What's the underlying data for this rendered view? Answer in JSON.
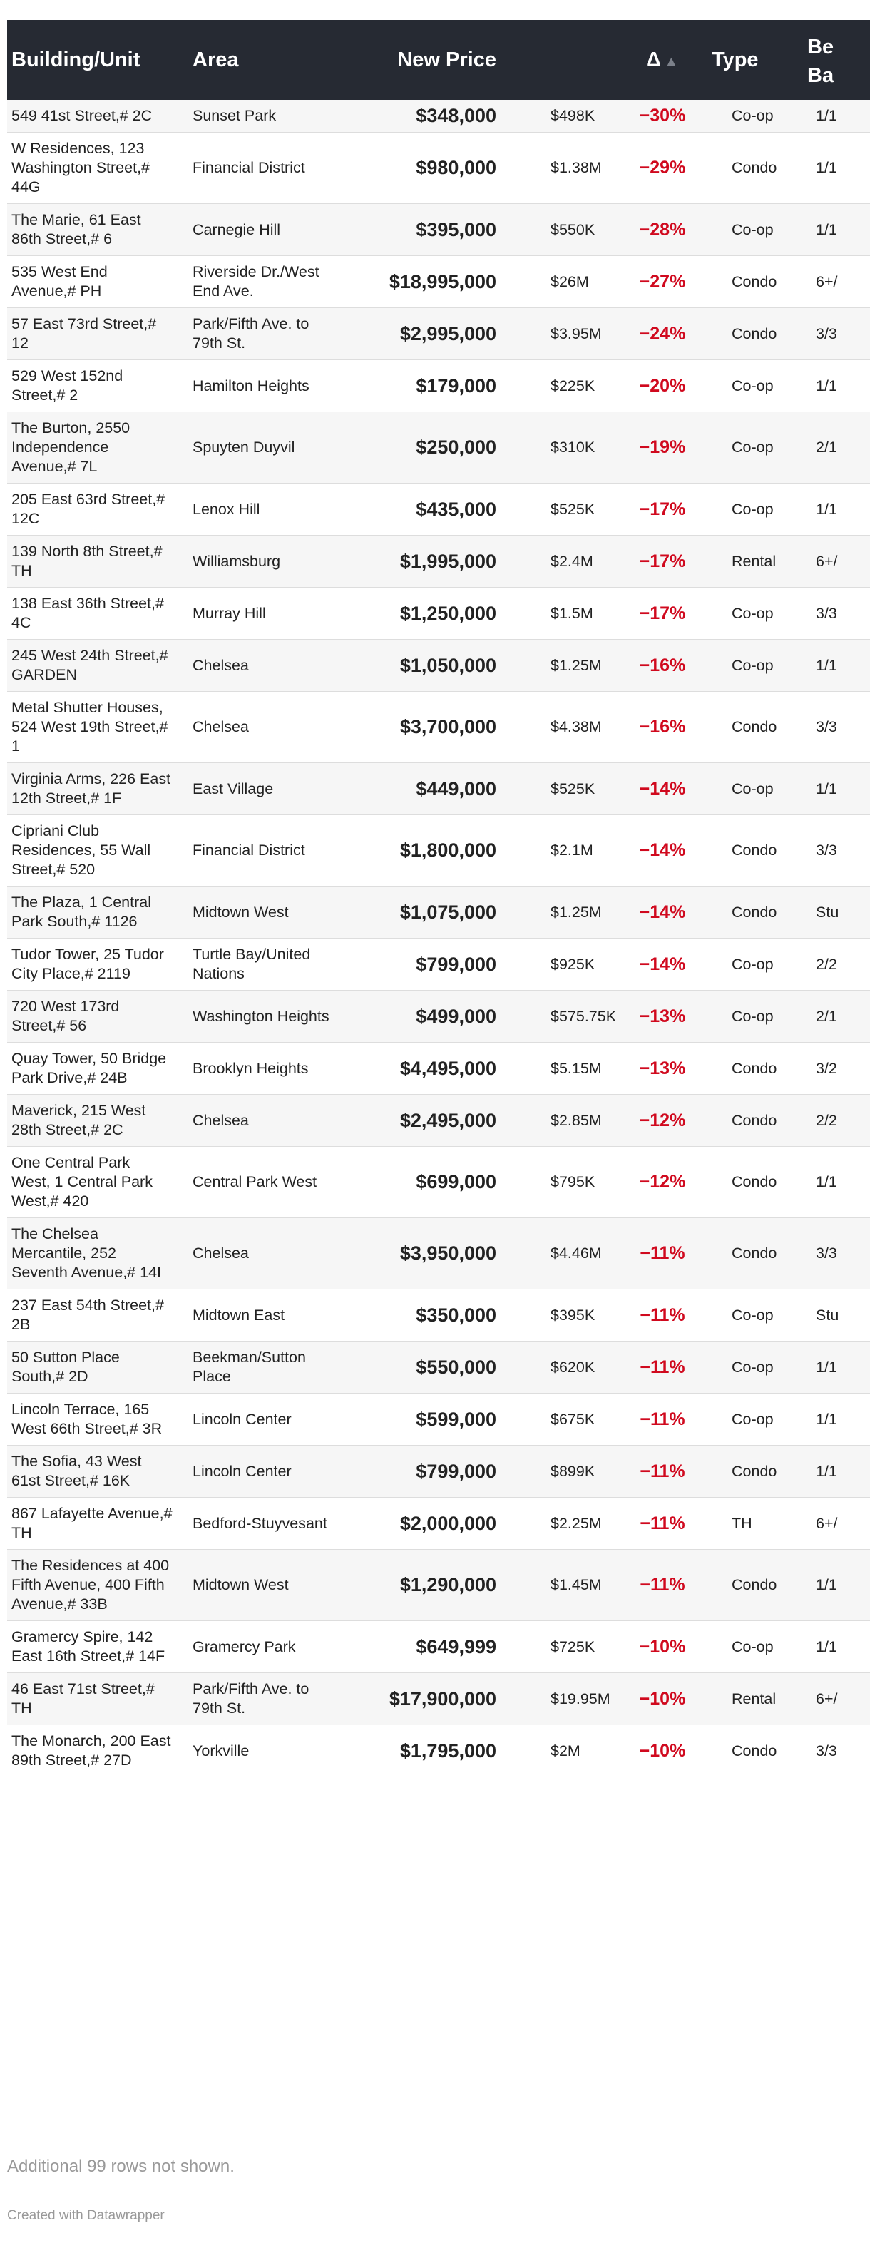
{
  "header": {
    "building": "Building/Unit",
    "area": "Area",
    "new_price": "New Price",
    "old_price": "",
    "delta": "Δ",
    "sort_glyph": "▲",
    "type": "Type",
    "bed_line1": "Be",
    "bed_line2": "Ba"
  },
  "rows": [
    {
      "building": "549 41st Street,# 2C",
      "area": "Sunset Park",
      "new_price": "$348,000",
      "old_price": "$498K",
      "delta": "−30%",
      "type": "Co-op",
      "bed_bath": "1/1"
    },
    {
      "building": "W Residences, 123 Washington Street,# 44G",
      "area": "Financial District",
      "new_price": "$980,000",
      "old_price": "$1.38M",
      "delta": "−29%",
      "type": "Condo",
      "bed_bath": "1/1"
    },
    {
      "building": "The Marie, 61 East 86th Street,# 6",
      "area": "Carnegie Hill",
      "new_price": "$395,000",
      "old_price": "$550K",
      "delta": "−28%",
      "type": "Co-op",
      "bed_bath": "1/1"
    },
    {
      "building": "535 West End Avenue,# PH",
      "area": "Riverside Dr./West End Ave.",
      "new_price": "$18,995,000",
      "old_price": "$26M",
      "delta": "−27%",
      "type": "Condo",
      "bed_bath": "6+/"
    },
    {
      "building": "57 East 73rd Street,# 12",
      "area": "Park/Fifth Ave. to 79th St.",
      "new_price": "$2,995,000",
      "old_price": "$3.95M",
      "delta": "−24%",
      "type": "Condo",
      "bed_bath": "3/3"
    },
    {
      "building": "529 West 152nd Street,# 2",
      "area": "Hamilton Heights",
      "new_price": "$179,000",
      "old_price": "$225K",
      "delta": "−20%",
      "type": "Co-op",
      "bed_bath": "1/1"
    },
    {
      "building": "The Burton, 2550 Independence Avenue,# 7L",
      "area": "Spuyten Duyvil",
      "new_price": "$250,000",
      "old_price": "$310K",
      "delta": "−19%",
      "type": "Co-op",
      "bed_bath": "2/1"
    },
    {
      "building": "205 East 63rd Street,# 12C",
      "area": "Lenox Hill",
      "new_price": "$435,000",
      "old_price": "$525K",
      "delta": "−17%",
      "type": "Co-op",
      "bed_bath": "1/1"
    },
    {
      "building": "139 North 8th Street,# TH",
      "area": "Williamsburg",
      "new_price": "$1,995,000",
      "old_price": "$2.4M",
      "delta": "−17%",
      "type": "Rental",
      "bed_bath": "6+/"
    },
    {
      "building": "138 East 36th Street,# 4C",
      "area": "Murray Hill",
      "new_price": "$1,250,000",
      "old_price": "$1.5M",
      "delta": "−17%",
      "type": "Co-op",
      "bed_bath": "3/3"
    },
    {
      "building": "245 West 24th Street,# GARDEN",
      "area": "Chelsea",
      "new_price": "$1,050,000",
      "old_price": "$1.25M",
      "delta": "−16%",
      "type": "Co-op",
      "bed_bath": "1/1"
    },
    {
      "building": "Metal Shutter Houses, 524 West 19th Street,# 1",
      "area": "Chelsea",
      "new_price": "$3,700,000",
      "old_price": "$4.38M",
      "delta": "−16%",
      "type": "Condo",
      "bed_bath": "3/3"
    },
    {
      "building": "Virginia Arms, 226 East 12th Street,# 1F",
      "area": "East Village",
      "new_price": "$449,000",
      "old_price": "$525K",
      "delta": "−14%",
      "type": "Co-op",
      "bed_bath": "1/1"
    },
    {
      "building": "Cipriani Club Residences, 55 Wall Street,# 520",
      "area": "Financial District",
      "new_price": "$1,800,000",
      "old_price": "$2.1M",
      "delta": "−14%",
      "type": "Condo",
      "bed_bath": "3/3"
    },
    {
      "building": "The Plaza, 1 Central Park South,# 1126",
      "area": "Midtown West",
      "new_price": "$1,075,000",
      "old_price": "$1.25M",
      "delta": "−14%",
      "type": "Condo",
      "bed_bath": "Stu"
    },
    {
      "building": "Tudor Tower, 25 Tudor City Place,# 2119",
      "area": "Turtle Bay/United Nations",
      "new_price": "$799,000",
      "old_price": "$925K",
      "delta": "−14%",
      "type": "Co-op",
      "bed_bath": "2/2"
    },
    {
      "building": "720 West 173rd Street,# 56",
      "area": "Washington Heights",
      "new_price": "$499,000",
      "old_price": "$575.75K",
      "delta": "−13%",
      "type": "Co-op",
      "bed_bath": "2/1"
    },
    {
      "building": "Quay Tower, 50 Bridge Park Drive,# 24B",
      "area": "Brooklyn Heights",
      "new_price": "$4,495,000",
      "old_price": "$5.15M",
      "delta": "−13%",
      "type": "Condo",
      "bed_bath": "3/2"
    },
    {
      "building": "Maverick, 215 West 28th Street,# 2C",
      "area": "Chelsea",
      "new_price": "$2,495,000",
      "old_price": "$2.85M",
      "delta": "−12%",
      "type": "Condo",
      "bed_bath": "2/2"
    },
    {
      "building": "One Central Park West, 1 Central Park West,# 420",
      "area": "Central Park West",
      "new_price": "$699,000",
      "old_price": "$795K",
      "delta": "−12%",
      "type": "Condo",
      "bed_bath": "1/1"
    },
    {
      "building": "The Chelsea Mercantile, 252 Seventh Avenue,# 14I",
      "area": "Chelsea",
      "new_price": "$3,950,000",
      "old_price": "$4.46M",
      "delta": "−11%",
      "type": "Condo",
      "bed_bath": "3/3"
    },
    {
      "building": "237 East 54th Street,# 2B",
      "area": "Midtown East",
      "new_price": "$350,000",
      "old_price": "$395K",
      "delta": "−11%",
      "type": "Co-op",
      "bed_bath": "Stu"
    },
    {
      "building": "50 Sutton Place South,# 2D",
      "area": "Beekman/Sutton Place",
      "new_price": "$550,000",
      "old_price": "$620K",
      "delta": "−11%",
      "type": "Co-op",
      "bed_bath": "1/1"
    },
    {
      "building": "Lincoln Terrace, 165 West 66th Street,# 3R",
      "area": "Lincoln Center",
      "new_price": "$599,000",
      "old_price": "$675K",
      "delta": "−11%",
      "type": "Co-op",
      "bed_bath": "1/1"
    },
    {
      "building": "The Sofia, 43 West 61st Street,# 16K",
      "area": "Lincoln Center",
      "new_price": "$799,000",
      "old_price": "$899K",
      "delta": "−11%",
      "type": "Condo",
      "bed_bath": "1/1"
    },
    {
      "building": "867 Lafayette Avenue,# TH",
      "area": "Bedford-Stuyvesant",
      "new_price": "$2,000,000",
      "old_price": "$2.25M",
      "delta": "−11%",
      "type": "TH",
      "bed_bath": "6+/"
    },
    {
      "building": "The Residences at 400 Fifth Avenue, 400 Fifth Avenue,# 33B",
      "area": "Midtown West",
      "new_price": "$1,290,000",
      "old_price": "$1.45M",
      "delta": "−11%",
      "type": "Condo",
      "bed_bath": "1/1"
    },
    {
      "building": "Gramercy Spire, 142 East 16th Street,# 14F",
      "area": "Gramercy Park",
      "new_price": "$649,999",
      "old_price": "$725K",
      "delta": "−10%",
      "type": "Co-op",
      "bed_bath": "1/1"
    },
    {
      "building": "46 East 71st Street,# TH",
      "area": "Park/Fifth Ave. to 79th St.",
      "new_price": "$17,900,000",
      "old_price": "$19.95M",
      "delta": "−10%",
      "type": "Rental",
      "bed_bath": "6+/"
    },
    {
      "building": "The Monarch, 200 East 89th Street,# 27D",
      "area": "Yorkville",
      "new_price": "$1,795,000",
      "old_price": "$2M",
      "delta": "−10%",
      "type": "Condo",
      "bed_bath": "3/3"
    }
  ],
  "footer": {
    "rows_note": "Additional 99 rows not shown.",
    "credit": "Created with Datawrapper"
  }
}
